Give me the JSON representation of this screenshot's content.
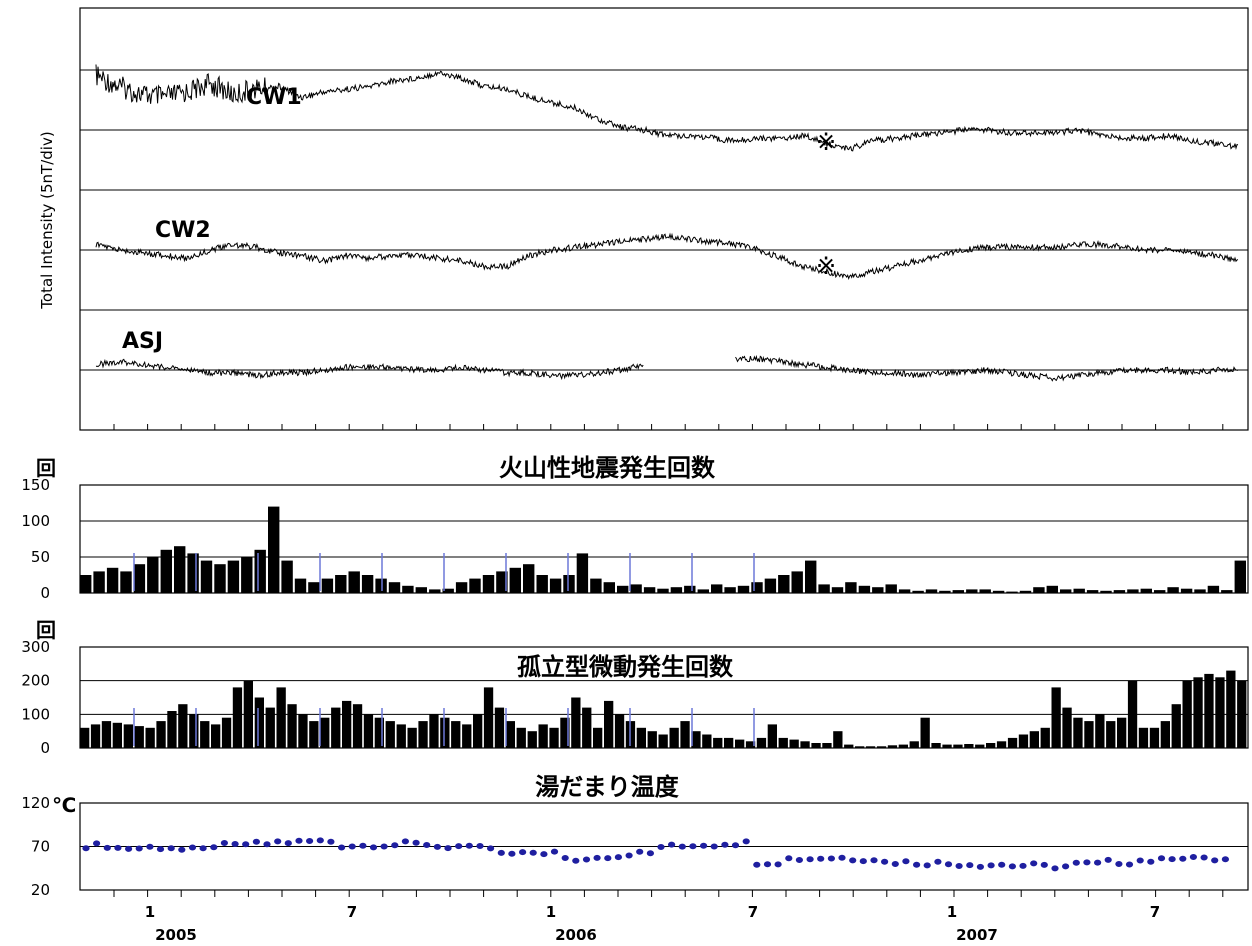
{
  "chart_data": [
    {
      "type": "line",
      "ylabel": "Total Intensity (5nT/div)",
      "series": [
        {
          "name": "CW1",
          "values": [
            2.0,
            1.6,
            1.3,
            1.2,
            1.4,
            1.7,
            1.3,
            1.5,
            1.6,
            1.2,
            1.4,
            1.5,
            1.6,
            1.8,
            1.9,
            2.1,
            1.9,
            1.6,
            1.5,
            1.2,
            1.0,
            0.8,
            0.4,
            0.1,
            0.0,
            -0.2,
            -0.2,
            -0.3,
            -0.4,
            -0.3,
            -0.3,
            -0.2,
            -0.5,
            -0.7,
            -0.4,
            -0.3,
            -0.2,
            -0.1,
            0.0,
            0.0,
            -0.1,
            -0.1,
            -0.1,
            0.0,
            -0.2,
            -0.3,
            -0.3,
            -0.2,
            -0.4,
            -0.5,
            -0.6
          ]
        },
        {
          "name": "CW2",
          "values": [
            0.2,
            0.0,
            -0.1,
            -0.2,
            -0.3,
            0.0,
            0.2,
            0.1,
            -0.1,
            -0.2,
            -0.4,
            -0.2,
            -0.3,
            -0.2,
            -0.2,
            -0.3,
            -0.4,
            -0.6,
            -0.6,
            -0.2,
            0.0,
            0.1,
            0.2,
            0.3,
            0.4,
            0.5,
            0.4,
            0.3,
            0.2,
            0.0,
            -0.3,
            -0.6,
            -0.8,
            -1.0,
            -0.8,
            -0.6,
            -0.4,
            -0.2,
            0.0,
            0.1,
            0.1,
            0.1,
            0.1,
            0.2,
            0.2,
            0.1,
            0.0,
            0.0,
            -0.1,
            -0.2,
            -0.4
          ]
        },
        {
          "name": "ASJ",
          "values": [
            0.2,
            0.3,
            0.2,
            0.1,
            0.0,
            -0.1,
            -0.1,
            -0.2,
            -0.1,
            -0.1,
            0.0,
            0.1,
            0.1,
            0.1,
            0.0,
            0.0,
            0.1,
            0.0,
            -0.1,
            -0.1,
            -0.2,
            -0.2,
            -0.1,
            0.0,
            0.2,
            null,
            0.3,
            null,
            0.4,
            0.4,
            0.3,
            0.2,
            0.1,
            0.0,
            -0.1,
            -0.1,
            -0.2,
            -0.1,
            -0.1,
            0.0,
            -0.1,
            -0.2,
            -0.3,
            -0.2,
            -0.1,
            0.0,
            0.0,
            0.0,
            -0.1,
            0.0,
            0.0
          ]
        }
      ],
      "annotations": [
        "※",
        "※"
      ]
    },
    {
      "type": "bar",
      "title": "火山性地震発生回数",
      "ylabel": "回",
      "ylim": [
        0,
        150
      ],
      "yticks": [
        0,
        50,
        100,
        150
      ],
      "values": [
        25,
        30,
        35,
        30,
        40,
        50,
        60,
        65,
        55,
        45,
        40,
        45,
        50,
        60,
        120,
        45,
        20,
        15,
        20,
        25,
        30,
        25,
        20,
        15,
        10,
        8,
        5,
        6,
        15,
        20,
        25,
        30,
        35,
        40,
        25,
        20,
        25,
        55,
        20,
        15,
        10,
        12,
        8,
        6,
        8,
        10,
        5,
        12,
        8,
        10,
        15,
        20,
        25,
        30,
        45,
        12,
        8,
        15,
        10,
        8,
        12,
        5,
        3,
        5,
        3,
        4,
        5,
        5,
        3,
        2,
        3,
        8,
        10,
        5,
        6,
        4,
        3,
        4,
        5,
        6,
        4,
        8,
        6,
        5,
        10,
        4,
        45
      ]
    },
    {
      "type": "bar",
      "title": "孤立型微動発生回数",
      "ylabel": "回",
      "ylim": [
        0,
        300
      ],
      "yticks": [
        0,
        100,
        200,
        300
      ],
      "values": [
        60,
        70,
        80,
        75,
        70,
        65,
        60,
        80,
        110,
        130,
        100,
        80,
        70,
        90,
        180,
        200,
        150,
        120,
        180,
        130,
        100,
        80,
        90,
        120,
        140,
        130,
        100,
        90,
        80,
        70,
        60,
        80,
        100,
        90,
        80,
        70,
        100,
        180,
        120,
        80,
        60,
        50,
        70,
        60,
        90,
        150,
        120,
        60,
        140,
        100,
        80,
        60,
        50,
        40,
        60,
        80,
        50,
        40,
        30,
        30,
        25,
        20,
        30,
        70,
        30,
        25,
        20,
        15,
        15,
        50,
        10,
        5,
        5,
        5,
        8,
        10,
        20,
        90,
        15,
        10,
        10,
        12,
        10,
        15,
        20,
        30,
        40,
        50,
        60,
        180,
        120,
        90,
        80,
        100,
        80,
        90,
        200,
        60,
        60,
        80,
        130,
        200,
        210,
        220,
        210,
        230,
        200
      ]
    },
    {
      "type": "scatter",
      "title": "湯だまり温度",
      "ylabel": "℃",
      "ylim": [
        20,
        120
      ],
      "yticks": [
        20,
        70,
        120
      ],
      "x": [
        "2004-10",
        "2004-11",
        "2004-12",
        "2005-01",
        "2005-02",
        "2005-03",
        "2005-04",
        "2005-05",
        "2005-06",
        "2005-07",
        "2005-08",
        "2005-09",
        "2005-10",
        "2005-11",
        "2005-12",
        "2006-01",
        "2006-02",
        "2006-03",
        "2006-04",
        "2006-05",
        "2006-06",
        "2006-07",
        "2006-08",
        "2006-09",
        "2006-10",
        "2006-11",
        "2006-12",
        "2007-01",
        "2007-02",
        "2007-03",
        "2007-04",
        "2007-05",
        "2007-06",
        "2007-07",
        "2007-08",
        "2007-09"
      ],
      "values": [
        71,
        68,
        69,
        66,
        71,
        73,
        75,
        76,
        71,
        72,
        73,
        70,
        68,
        61,
        63,
        55,
        59,
        62,
        70,
        72,
        74,
        52,
        56,
        57,
        56,
        52,
        51,
        50,
        49,
        48,
        47,
        50,
        52,
        54,
        58,
        55
      ]
    }
  ],
  "x_axis": {
    "months": [
      "1",
      "7",
      "1",
      "7",
      "1",
      "7"
    ],
    "years": [
      "2005",
      "2006",
      "2007"
    ]
  }
}
